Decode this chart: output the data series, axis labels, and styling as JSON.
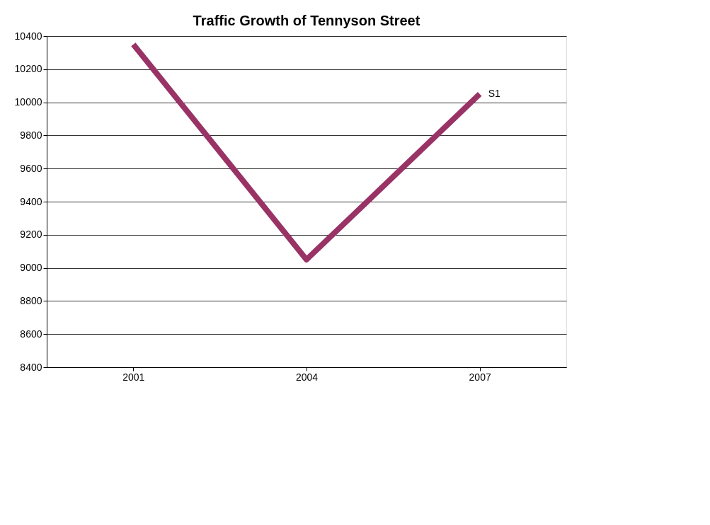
{
  "chart_data": {
    "type": "line",
    "title": "Traffic Growth of Tennyson Street",
    "categories": [
      "2001",
      "2004",
      "2007"
    ],
    "series": [
      {
        "name": "S1",
        "color": "#993366",
        "values": [
          10350,
          9050,
          10050
        ]
      }
    ],
    "ylim": [
      8400,
      10400
    ],
    "yticks": [
      8400,
      8600,
      8800,
      9000,
      9200,
      9400,
      9600,
      9800,
      10000,
      10200,
      10400
    ],
    "grid": "y",
    "marker": "none",
    "line_style": "solid"
  }
}
